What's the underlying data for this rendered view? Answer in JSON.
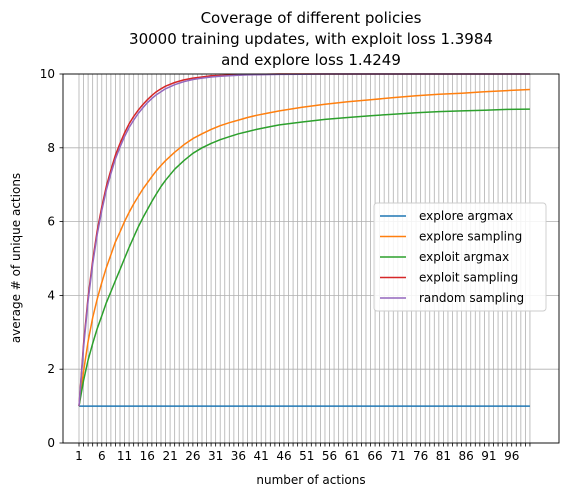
{
  "chart_data": {
    "type": "line",
    "title_lines": [
      "Coverage of different policies",
      "30000 training updates, with exploit loss 1.3984",
      "and explore loss 1.4249"
    ],
    "xlabel": "number of actions",
    "ylabel": "average # of unique actions",
    "xlim": [
      1,
      100
    ],
    "ylim": [
      0,
      10
    ],
    "x_tick_labels": [
      "1",
      "6",
      "11",
      "16",
      "21",
      "26",
      "31",
      "36",
      "41",
      "46",
      "51",
      "56",
      "61",
      "66",
      "71",
      "76",
      "81",
      "86",
      "91",
      "96"
    ],
    "y_tick_labels": [
      "0",
      "2",
      "4",
      "6",
      "8",
      "10"
    ],
    "grid": true,
    "legend_position": "center-right",
    "x": [
      1,
      2,
      3,
      4,
      5,
      6,
      7,
      8,
      9,
      10,
      11,
      12,
      13,
      14,
      15,
      16,
      17,
      18,
      19,
      20,
      22,
      24,
      26,
      28,
      30,
      32,
      34,
      36,
      38,
      40,
      42,
      45,
      50,
      55,
      60,
      65,
      70,
      75,
      80,
      85,
      90,
      95,
      100
    ],
    "series": [
      {
        "name": "explore argmax",
        "color": "#1f77b4",
        "values": [
          1,
          1,
          1,
          1,
          1,
          1,
          1,
          1,
          1,
          1,
          1,
          1,
          1,
          1,
          1,
          1,
          1,
          1,
          1,
          1,
          1,
          1,
          1,
          1,
          1,
          1,
          1,
          1,
          1,
          1,
          1,
          1,
          1,
          1,
          1,
          1,
          1,
          1,
          1,
          1,
          1,
          1,
          1
        ]
      },
      {
        "name": "explore sampling",
        "color": "#ff7f0e",
        "values": [
          1.0,
          1.95,
          2.75,
          3.4,
          3.9,
          4.35,
          4.75,
          5.1,
          5.45,
          5.72,
          6.0,
          6.25,
          6.48,
          6.68,
          6.88,
          7.05,
          7.22,
          7.38,
          7.52,
          7.65,
          7.88,
          8.08,
          8.25,
          8.38,
          8.5,
          8.6,
          8.68,
          8.75,
          8.82,
          8.88,
          8.93,
          9.0,
          9.1,
          9.18,
          9.25,
          9.3,
          9.36,
          9.41,
          9.45,
          9.48,
          9.52,
          9.55,
          9.58
        ]
      },
      {
        "name": "exploit argmax",
        "color": "#2ca02c",
        "values": [
          1.0,
          1.7,
          2.25,
          2.7,
          3.1,
          3.45,
          3.8,
          4.1,
          4.4,
          4.7,
          5.0,
          5.3,
          5.58,
          5.85,
          6.1,
          6.32,
          6.55,
          6.75,
          6.95,
          7.12,
          7.42,
          7.65,
          7.85,
          8.0,
          8.12,
          8.22,
          8.3,
          8.38,
          8.44,
          8.5,
          8.55,
          8.62,
          8.7,
          8.77,
          8.82,
          8.87,
          8.91,
          8.95,
          8.98,
          9.0,
          9.02,
          9.04,
          9.05
        ]
      },
      {
        "name": "exploit sampling",
        "color": "#d62728",
        "values": [
          1.0,
          2.7,
          3.95,
          4.95,
          5.75,
          6.4,
          6.95,
          7.4,
          7.8,
          8.12,
          8.4,
          8.65,
          8.85,
          9.02,
          9.17,
          9.3,
          9.42,
          9.52,
          9.6,
          9.67,
          9.77,
          9.84,
          9.89,
          9.92,
          9.95,
          9.96,
          9.97,
          9.98,
          9.985,
          9.99,
          9.995,
          10.0,
          10.0,
          10.0,
          10.0,
          10.0,
          10.0,
          10.0,
          10.0,
          10.0,
          10.0,
          10.0,
          10.0
        ]
      },
      {
        "name": "random sampling",
        "color": "#9467bd",
        "values": [
          1.0,
          2.6,
          3.85,
          4.85,
          5.65,
          6.3,
          6.85,
          7.3,
          7.7,
          8.02,
          8.3,
          8.55,
          8.75,
          8.93,
          9.08,
          9.22,
          9.34,
          9.44,
          9.52,
          9.6,
          9.71,
          9.79,
          9.85,
          9.89,
          9.92,
          9.94,
          9.955,
          9.965,
          9.975,
          9.98,
          9.985,
          9.99,
          9.995,
          10.0,
          10.0,
          10.0,
          10.0,
          10.0,
          10.0,
          10.0,
          10.0,
          10.0,
          10.0
        ]
      }
    ]
  }
}
